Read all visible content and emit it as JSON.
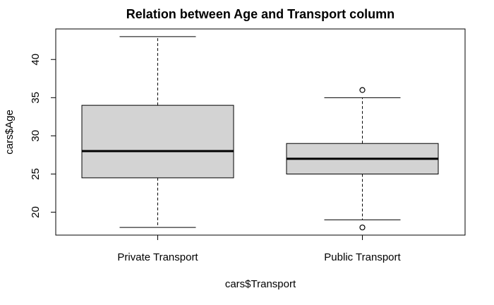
{
  "chart_data": {
    "type": "boxplot",
    "title": "Relation between Age and Transport column",
    "xlabel": "cars$Transport",
    "ylabel": "cars$Age",
    "ylim": [
      17,
      44
    ],
    "y_ticks": [
      20,
      25,
      30,
      35,
      40
    ],
    "grid": false,
    "colors": {
      "box_fill": "#d3d3d3",
      "stroke": "#000000"
    },
    "categories": [
      "Private Transport",
      "Public Transport"
    ],
    "boxes": [
      {
        "category": "Private Transport",
        "whisker_low": 18,
        "q1": 24.5,
        "median": 28,
        "q3": 34,
        "whisker_high": 43,
        "outliers": []
      },
      {
        "category": "Public Transport",
        "whisker_low": 19,
        "q1": 25,
        "median": 27,
        "q3": 29,
        "whisker_high": 35,
        "outliers": [
          36,
          18
        ]
      }
    ]
  }
}
